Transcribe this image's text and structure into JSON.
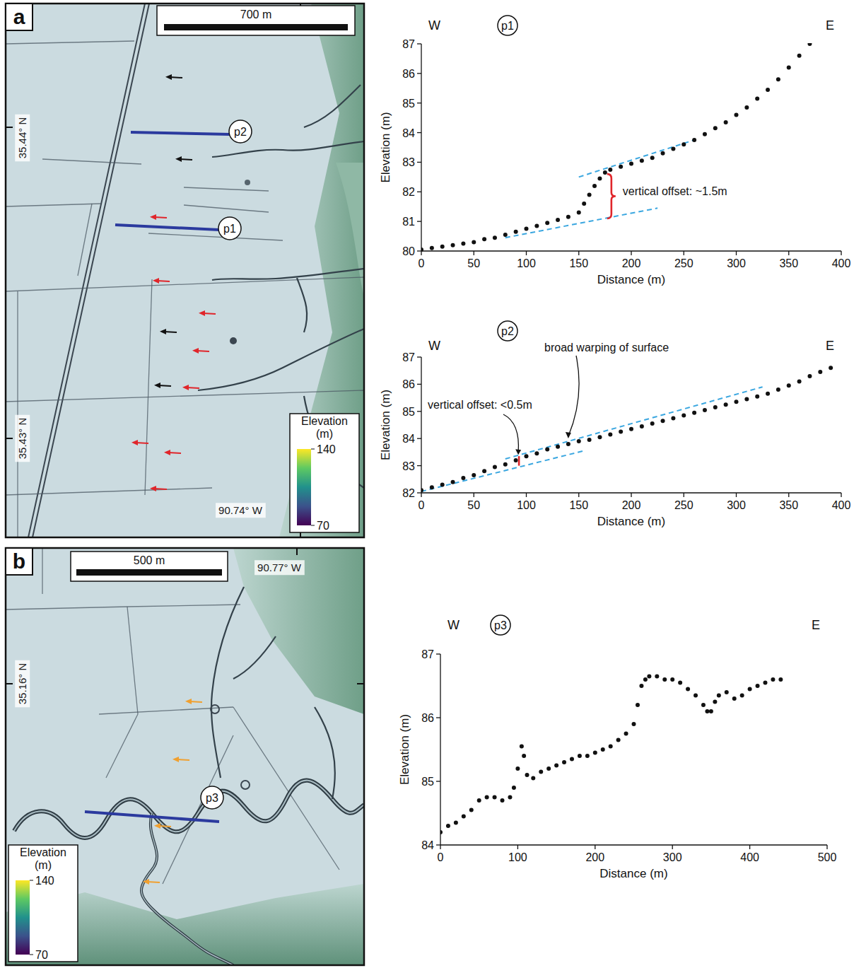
{
  "maps": [
    {
      "label": "a",
      "scale_bar": "700 m",
      "coordinates": [
        "35.44° N",
        "35.43° N",
        "90.74° W"
      ],
      "profiles": [
        "p2",
        "p1"
      ],
      "colorbar": {
        "label": "Elevation (m)",
        "range": [
          70,
          140
        ],
        "ticks": [
          70,
          140
        ]
      }
    },
    {
      "label": "b",
      "scale_bar": "500 m",
      "coordinates": [
        "90.77° W",
        "35.16° N"
      ],
      "profiles": [
        "p3"
      ],
      "colorbar": {
        "label": "Elevation (m)",
        "range": [
          70,
          140
        ],
        "ticks": [
          70,
          140
        ]
      }
    }
  ],
  "chart_data": [
    {
      "type": "scatter",
      "title": "p1",
      "direction_labels": [
        "W",
        "E"
      ],
      "x_label": "Distance (m)",
      "y_label": "Elevation (m)",
      "color": "#111111",
      "marker": "circle",
      "x": [
        0,
        10,
        20,
        30,
        40,
        50,
        60,
        70,
        80,
        90,
        100,
        110,
        120,
        130,
        140,
        150,
        155,
        160,
        165,
        170,
        175,
        180,
        190,
        200,
        210,
        220,
        230,
        240,
        250,
        260,
        270,
        280,
        290,
        300,
        310,
        320,
        330,
        340,
        350,
        360,
        370
      ],
      "values": [
        80.05,
        80.1,
        80.15,
        80.2,
        80.25,
        80.3,
        80.4,
        80.45,
        80.55,
        80.65,
        80.75,
        80.85,
        80.95,
        81.05,
        81.15,
        81.3,
        81.6,
        81.9,
        82.2,
        82.45,
        82.65,
        82.75,
        82.85,
        82.95,
        83.05,
        83.15,
        83.3,
        83.45,
        83.6,
        83.75,
        83.95,
        84.15,
        84.35,
        84.6,
        84.85,
        85.15,
        85.45,
        85.8,
        86.2,
        86.6,
        87
      ],
      "xlim": [
        0,
        400
      ],
      "xticks": [
        0,
        50,
        100,
        150,
        200,
        250,
        300,
        350,
        400
      ],
      "ylim": [
        80,
        87
      ],
      "yticks": [
        80,
        81,
        82,
        83,
        84,
        85,
        86,
        87
      ],
      "fit_lines": [
        {
          "color": "#3ba7e0",
          "line_style": "dashed",
          "x": [
            80,
            225
          ],
          "y": [
            80.45,
            81.45
          ]
        },
        {
          "color": "#3ba7e0",
          "line_style": "dashed",
          "x": [
            150,
            260
          ],
          "y": [
            82.5,
            83.75
          ]
        }
      ],
      "offsets": [
        {
          "color": "#e0262b",
          "x": 177,
          "y": [
            81.1,
            82.6
          ],
          "label": "vertical offset: ~1.5m"
        }
      ],
      "annotations": []
    },
    {
      "type": "scatter",
      "title": "p2",
      "direction_labels": [
        "W",
        "E"
      ],
      "x_label": "Distance (m)",
      "y_label": "Elevation (m)",
      "color": "#111111",
      "marker": "circle",
      "x": [
        0,
        10,
        20,
        30,
        40,
        50,
        60,
        70,
        80,
        90,
        100,
        110,
        120,
        130,
        140,
        150,
        160,
        170,
        180,
        190,
        200,
        210,
        220,
        230,
        240,
        250,
        260,
        270,
        280,
        290,
        300,
        310,
        320,
        330,
        340,
        350,
        360,
        370,
        380,
        390
      ],
      "values": [
        82.1,
        82.2,
        82.3,
        82.4,
        82.55,
        82.65,
        82.8,
        82.95,
        83.05,
        83.2,
        83.35,
        83.45,
        83.6,
        83.7,
        83.8,
        83.9,
        83.95,
        84.05,
        84.15,
        84.25,
        84.35,
        84.45,
        84.55,
        84.65,
        84.75,
        84.85,
        84.95,
        85.05,
        85.15,
        85.25,
        85.35,
        85.45,
        85.55,
        85.65,
        85.8,
        85.95,
        86.1,
        86.3,
        86.45,
        86.6
      ],
      "xlim": [
        0,
        400
      ],
      "xticks": [
        0,
        50,
        100,
        150,
        200,
        250,
        300,
        350,
        400
      ],
      "ylim": [
        82,
        87
      ],
      "yticks": [
        82,
        83,
        84,
        85,
        86,
        87
      ],
      "fit_lines": [
        {
          "color": "#3ba7e0",
          "line_style": "dashed",
          "x": [
            0,
            155
          ],
          "y": [
            82.05,
            83.55
          ]
        },
        {
          "color": "#3ba7e0",
          "line_style": "dashed",
          "x": [
            80,
            325
          ],
          "y": [
            83.25,
            85.9
          ]
        }
      ],
      "offsets": [
        {
          "color": "#e0262b",
          "x": 93,
          "y": [
            83.0,
            83.35
          ],
          "label": "vertical offset: <0.5m"
        }
      ],
      "annotations": [
        {
          "text": "broad warping of surface",
          "x": 140,
          "y": 83.9
        }
      ]
    },
    {
      "type": "scatter",
      "title": "p3",
      "direction_labels": [
        "W",
        "E"
      ],
      "x_label": "Distance (m)",
      "y_label": "Elevation (m)",
      "color": "#111111",
      "marker": "circle",
      "x": [
        0,
        10,
        20,
        30,
        40,
        50,
        60,
        70,
        80,
        90,
        95,
        100,
        105,
        108,
        112,
        120,
        130,
        140,
        150,
        160,
        170,
        180,
        190,
        200,
        210,
        220,
        230,
        240,
        250,
        255,
        260,
        265,
        270,
        280,
        290,
        300,
        310,
        320,
        330,
        340,
        345,
        350,
        355,
        360,
        370,
        380,
        390,
        400,
        410,
        420,
        430,
        440
      ],
      "values": [
        84.2,
        84.3,
        84.35,
        84.45,
        84.55,
        84.7,
        84.75,
        84.75,
        84.7,
        84.75,
        84.9,
        85.2,
        85.55,
        85.4,
        85.1,
        85.05,
        85.15,
        85.2,
        85.25,
        85.3,
        85.35,
        85.4,
        85.4,
        85.45,
        85.5,
        85.55,
        85.65,
        85.75,
        85.9,
        86.2,
        86.5,
        86.6,
        86.65,
        86.65,
        86.6,
        86.6,
        86.55,
        86.45,
        86.35,
        86.2,
        86.1,
        86.1,
        86.25,
        86.35,
        86.4,
        86.3,
        86.35,
        86.45,
        86.5,
        86.55,
        86.6,
        86.6
      ],
      "xlim": [
        0,
        500
      ],
      "xticks": [
        0,
        100,
        200,
        300,
        400,
        500
      ],
      "ylim": [
        84,
        87
      ],
      "yticks": [
        84,
        85,
        86,
        87
      ],
      "fit_lines": [],
      "offsets": [],
      "annotations": []
    }
  ]
}
